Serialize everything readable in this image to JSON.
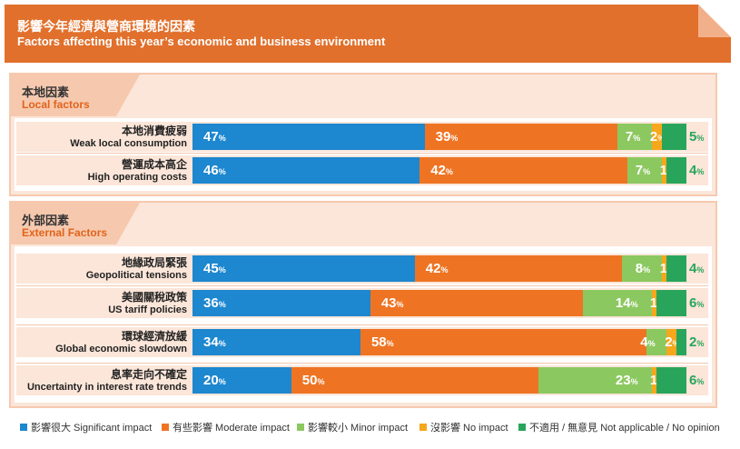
{
  "header": {
    "title_zh": "影響今年經濟與營商環境的因素",
    "title_en": "Factors affecting this year’s economic and business environment"
  },
  "colors": {
    "banner": "#e1702c",
    "significant": "#1d87cf",
    "moderate": "#ee7423",
    "minor": "#8cc860",
    "no_impact": "#f6a71c",
    "not_applicable": "#29a55b"
  },
  "chart_data": {
    "type": "bar",
    "orientation": "horizontal",
    "stacked": true,
    "unit": "%",
    "xlim": [
      0,
      100
    ],
    "series": [
      {
        "name": "影響很大 Significant impact",
        "color": "#1d87cf"
      },
      {
        "name": "有些影響 Moderate impact",
        "color": "#ee7423"
      },
      {
        "name": "影響較小 Minor impact",
        "color": "#8cc860"
      },
      {
        "name": "沒影響 No impact",
        "color": "#f6a71c"
      },
      {
        "name": "不適用 / 無意見 Not applicable / No opinion",
        "color": "#29a55b"
      }
    ],
    "groups": [
      {
        "title_zh": "本地因素",
        "title_en": "Local factors",
        "rows": [
          {
            "label_zh": "本地消費疲弱",
            "label_en": "Weak local consumption",
            "values": [
              47,
              39,
              7,
              2,
              5
            ]
          },
          {
            "label_zh": "營運成本高企",
            "label_en": "High operating costs",
            "values": [
              46,
              42,
              7,
              1,
              4
            ]
          }
        ]
      },
      {
        "title_zh": "外部因素",
        "title_en": "External Factors",
        "rows": [
          {
            "label_zh": "地緣政局緊張",
            "label_en": "Geopolitical tensions",
            "values": [
              45,
              42,
              8,
              1,
              4
            ]
          },
          {
            "label_zh": "美國關稅政策",
            "label_en": "US tariff policies",
            "values": [
              36,
              43,
              14,
              1,
              6
            ]
          },
          {
            "label_zh": "環球經濟放緩",
            "label_en": "Global economic slowdown",
            "values": [
              34,
              58,
              4,
              2,
              2
            ]
          },
          {
            "label_zh": "息率走向不確定",
            "label_en": "Uncertainty in interest rate trends",
            "values": [
              20,
              50,
              23,
              1,
              6
            ]
          }
        ]
      }
    ]
  },
  "legend": {
    "items": [
      {
        "label": "影響很大 Significant impact",
        "color": "#1d87cf"
      },
      {
        "label": "有些影響 Moderate impact",
        "color": "#ee7423"
      },
      {
        "label": "影響較小 Minor impact",
        "color": "#8cc860"
      },
      {
        "label": "沒影響 No impact",
        "color": "#f6a71c"
      },
      {
        "label": "不適用 / 無意見 Not applicable / No opinion",
        "color": "#29a55b"
      }
    ]
  }
}
